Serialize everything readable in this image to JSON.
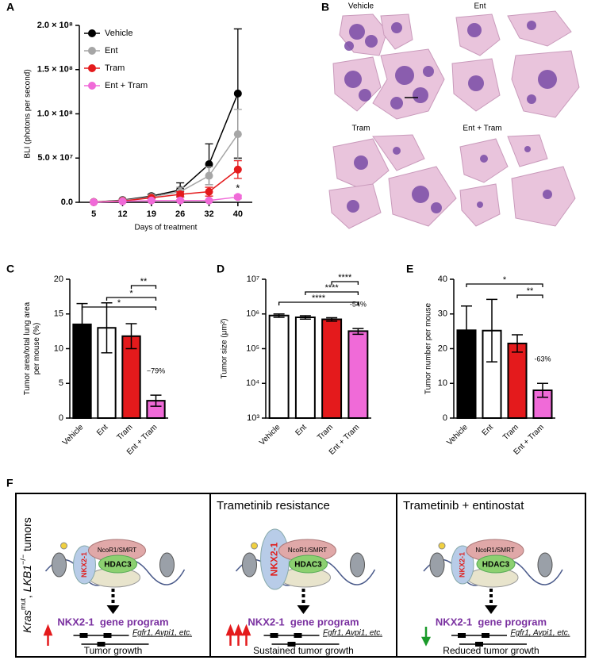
{
  "panel_labels": [
    "A",
    "B",
    "C",
    "D",
    "E",
    "F"
  ],
  "chart_data": [
    {
      "type": "line",
      "x_label": "Days of treatment",
      "y_label": "BLI (photons per second)",
      "categories": [
        "5",
        "12",
        "19",
        "26",
        "32",
        "40"
      ],
      "ylim": [
        0,
        200000000
      ],
      "yticks": [
        {
          "value": 0,
          "label": "0.0"
        },
        {
          "value": 50000000,
          "label": "5.0 × 10⁷"
        },
        {
          "value": 100000000,
          "label": "1.0 × 10⁸"
        },
        {
          "value": 150000000,
          "label": "1.5 × 10⁸"
        },
        {
          "value": 200000000,
          "label": "2.0 × 10⁸"
        }
      ],
      "legend": "upper left",
      "series": [
        {
          "name": "Vehicle",
          "color": "#000000",
          "values": [
            300000,
            2500000,
            7000000,
            14000000,
            43000000,
            123000000
          ],
          "errors": [
            300000,
            1000000,
            2000000,
            8000000,
            23000000,
            73000000
          ]
        },
        {
          "name": "Ent",
          "color": "#a6a6a6",
          "values": [
            200000,
            2000000,
            6000000,
            12000000,
            30000000,
            77000000
          ],
          "errors": [
            200000,
            1000000,
            2000000,
            5000000,
            10000000,
            28000000
          ]
        },
        {
          "name": "Tram",
          "color": "#e41a1c",
          "values": [
            200000,
            1500000,
            5000000,
            9000000,
            12000000,
            37000000
          ],
          "errors": [
            200000,
            1000000,
            1000000,
            3000000,
            5000000,
            10000000
          ]
        },
        {
          "name": "Ent + Tram",
          "color": "#f06ad8",
          "values": [
            100000,
            1000000,
            2000000,
            2000000,
            2000000,
            6000000
          ],
          "errors": [
            100000,
            500000,
            1000000,
            1000000,
            1000000,
            2000000
          ]
        }
      ],
      "annotations": [
        "*"
      ]
    },
    {
      "type": "bar",
      "y_label": [
        "Tumor area/total lung area",
        "per mouse (%)"
      ],
      "categories": [
        "Vehicle",
        "Ent",
        "Tram",
        "Ent + Tram"
      ],
      "values": [
        13.5,
        13.0,
        11.8,
        2.5
      ],
      "errors": [
        3.0,
        3.6,
        1.8,
        0.8
      ],
      "colors": [
        "#000000",
        "#ffffff",
        "#e41a1c",
        "#f06ad8"
      ],
      "ylim": [
        0,
        20
      ],
      "yticks": [
        0,
        5,
        10,
        15,
        20
      ],
      "annotations": [
        "*",
        "*",
        "**",
        "−79%"
      ]
    },
    {
      "type": "bar",
      "y_label": "Tumor size (μm²)",
      "log_scale": true,
      "categories": [
        "Vehicle",
        "Ent",
        "Tram",
        "Ent + Tram"
      ],
      "values": [
        900000,
        800000,
        700000,
        320000
      ],
      "errors": [
        100000,
        90000,
        80000,
        60000
      ],
      "colors": [
        "#ffffff",
        "#ffffff",
        "#e41a1c",
        "#f06ad8"
      ],
      "ylim": [
        1000,
        10000000
      ],
      "yticks": [
        {
          "value": 1000,
          "label": "10³"
        },
        {
          "value": 10000,
          "label": "10⁴"
        },
        {
          "value": 100000,
          "label": "10⁵"
        },
        {
          "value": 1000000,
          "label": "10⁶"
        },
        {
          "value": 10000000,
          "label": "10⁷"
        }
      ],
      "annotations": [
        "****",
        "****",
        "****",
        "-54%"
      ]
    },
    {
      "type": "bar",
      "y_label": "Tumor number per mouse",
      "categories": [
        "Vehicle",
        "Ent",
        "Tram",
        "Ent + Tram"
      ],
      "values": [
        25.3,
        25.2,
        21.5,
        8.0
      ],
      "errors": [
        7.0,
        9.0,
        2.5,
        2.0
      ],
      "colors": [
        "#000000",
        "#ffffff",
        "#e41a1c",
        "#f06ad8"
      ],
      "ylim": [
        0,
        40
      ],
      "yticks": [
        0,
        10,
        20,
        30,
        40
      ],
      "annotations": [
        "*",
        "**",
        "-63%"
      ]
    }
  ],
  "histology": {
    "labels": [
      "Vehicle",
      "Ent",
      "Tram",
      "Ent + Tram"
    ]
  },
  "diagram": {
    "side_label": [
      "Kras",
      "mut",
      ", ",
      "LKB1",
      "−/−",
      " tumors"
    ],
    "panels": [
      {
        "factors": [
          "NcoR1/SMRT",
          "HDAC3",
          "NKX2-1"
        ],
        "program": "NKX2-1  gene program",
        "genes": "Fgfr1, Avpi1, etc.",
        "outcome": "Tumor growth"
      },
      {
        "heading": "Trametinib resistance",
        "factors": [
          "NcoR1/SMRT",
          "HDAC3",
          "NKX2-1"
        ],
        "program": "NKX2-1  gene program",
        "genes": "Fgfr1, Avpi1, etc.",
        "outcome": "Sustained tumor growth"
      },
      {
        "heading": "Trametinib + entinostat",
        "factors": [
          "NcoR1/SMRT",
          "HDAC3",
          "NKX2-1"
        ],
        "program": "NKX2-1  gene program",
        "genes": "Fgfr1, Avpi1, etc.",
        "outcome": "Reduced tumor growth"
      }
    ]
  }
}
